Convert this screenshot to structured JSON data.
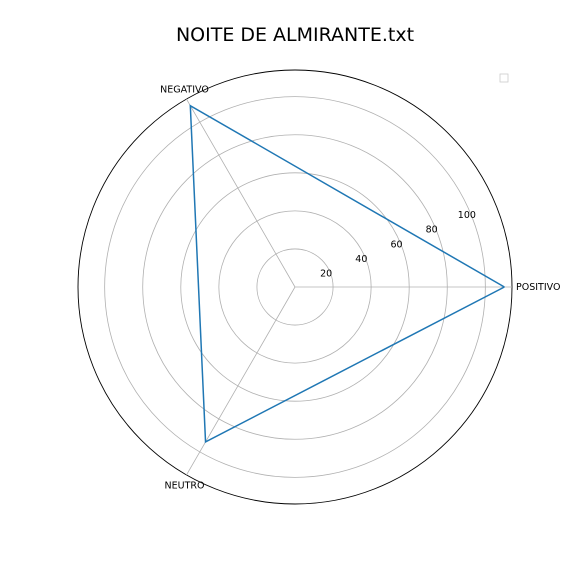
{
  "chart_data": {
    "type": "radar",
    "title": "NOITE DE ALMIRANTE.txt",
    "categories": [
      "POSITIVO",
      "NEGATIVO",
      "NEUTRO"
    ],
    "series": [
      {
        "values": [
          110,
          110,
          94
        ],
        "color": "#1f77b4"
      }
    ],
    "rlim": [
      0,
      114
    ],
    "rticks": [
      20,
      40,
      60,
      80,
      100
    ],
    "grid": true,
    "legend": "top-right",
    "legend_entries": []
  }
}
